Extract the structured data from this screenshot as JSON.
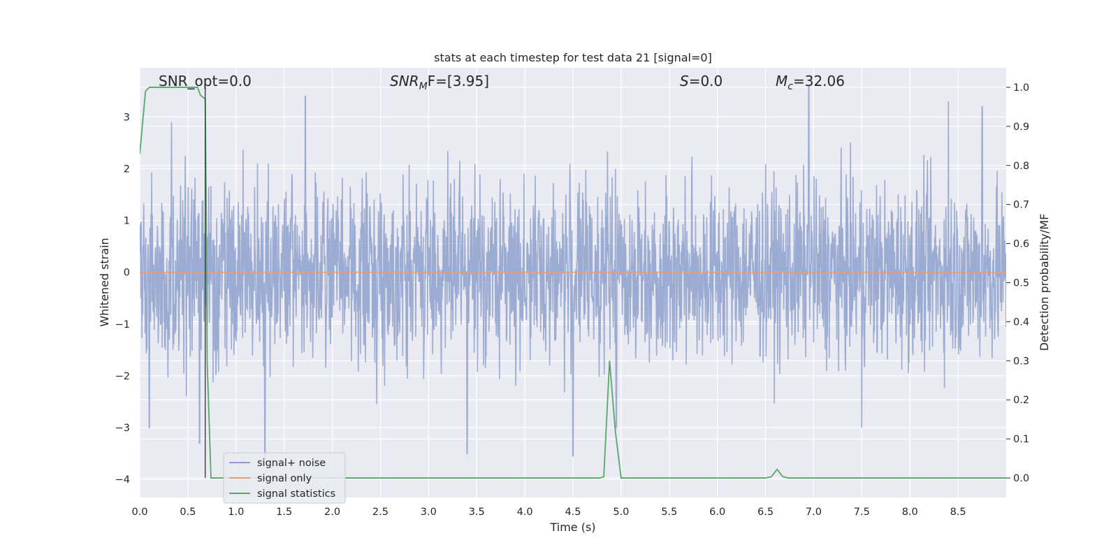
{
  "chart_data": {
    "type": "line",
    "title": "stats at each timestep for test data 21 [signal=0]",
    "xlabel": "Time (s)",
    "ylabel": "Whitened strain",
    "ylabel_right": "Detection probability/MF",
    "xlim": [
      0.0,
      9.0
    ],
    "ylim": [
      -4.35,
      3.95
    ],
    "ylim_right": [
      -0.05,
      1.05
    ],
    "x_ticks": [
      "0.0",
      "0.5",
      "1.0",
      "1.5",
      "2.0",
      "2.5",
      "3.0",
      "3.5",
      "4.0",
      "4.5",
      "5.0",
      "5.5",
      "6.0",
      "6.5",
      "7.0",
      "7.5",
      "8.0",
      "8.5"
    ],
    "y_ticks": [
      "3",
      "2",
      "1",
      "0",
      "−1",
      "−2",
      "−3",
      "−4"
    ],
    "y_ticks_right": [
      "1.0",
      "0.9",
      "0.8",
      "0.7",
      "0.6",
      "0.5",
      "0.4",
      "0.3",
      "0.2",
      "0.1",
      "0.0"
    ],
    "grid": true,
    "legend_placement": "lower-left",
    "annotations": {
      "snr_opt": "SNR_opt=0.0",
      "snr_mf_base": "SNR",
      "snr_mf_sub": "M",
      "snr_mf_rest": "F=[3.95]",
      "s_italic": "S",
      "s_rest": "=0.0",
      "mc_base": "M",
      "mc_sub": "c",
      "mc_rest": "=32.06"
    },
    "marker_line_x": 0.68,
    "series": [
      {
        "name": "signal+ noise",
        "color": "#8da0cb",
        "axis": "left",
        "description_range": [
          -3.7,
          3.6
        ],
        "peaks_x": [
          0.1,
          0.33,
          0.62,
          1.3,
          1.72,
          3.4,
          4.5,
          4.95,
          6.95,
          7.5,
          8.4,
          8.75
        ],
        "peaks_y": [
          -3.0,
          2.9,
          -3.3,
          -3.6,
          3.4,
          -3.5,
          -3.55,
          -3.0,
          3.6,
          -3.0,
          3.3,
          3.2
        ]
      },
      {
        "name": "signal only",
        "color": "#e49e7e",
        "axis": "left",
        "x": [
          0.0,
          9.0
        ],
        "y": [
          0.0,
          0.0
        ]
      },
      {
        "name": "signal statistics",
        "color": "#55a868",
        "axis": "right",
        "x": [
          0.0,
          0.06,
          0.1,
          0.6,
          0.63,
          0.68,
          0.69,
          0.7,
          0.74,
          0.8,
          4.7,
          4.78,
          4.82,
          4.88,
          4.94,
          5.0,
          5.1,
          6.5,
          6.56,
          6.62,
          6.68,
          6.74,
          9.0
        ],
        "y": [
          0.83,
          0.99,
          1.0,
          1.0,
          0.98,
          0.97,
          0.7,
          0.3,
          0.0,
          0.0,
          0.0,
          0.0,
          0.003,
          0.3,
          0.12,
          0.0,
          0.0,
          0.0,
          0.003,
          0.022,
          0.003,
          0.0,
          0.0
        ]
      }
    ]
  }
}
